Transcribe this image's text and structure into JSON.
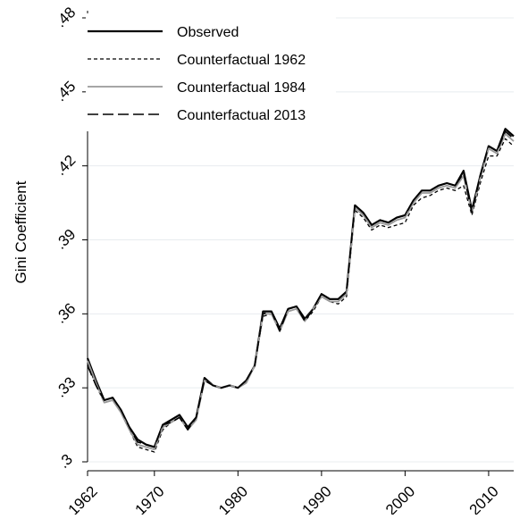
{
  "chart_data": {
    "type": "line",
    "ylabel": "Gini Coefficient",
    "xlabel": "",
    "xlim": [
      1962,
      2013
    ],
    "ylim": [
      0.3,
      0.48
    ],
    "x_ticks": [
      1962,
      1970,
      1980,
      1990,
      2000,
      2010
    ],
    "x_tick_labels": [
      "1962",
      "1970",
      "1980",
      "1990",
      "2000",
      "2010"
    ],
    "y_ticks": [
      0.3,
      0.33,
      0.36,
      0.39,
      0.42,
      0.45,
      0.48
    ],
    "y_tick_labels": [
      ".3",
      ".33",
      ".36",
      ".39",
      ".42",
      ".45",
      ".48"
    ],
    "grid": true,
    "legend_position": "top-left",
    "x": [
      1962,
      1963,
      1964,
      1965,
      1966,
      1967,
      1968,
      1969,
      1970,
      1971,
      1972,
      1973,
      1974,
      1975,
      1976,
      1977,
      1978,
      1979,
      1980,
      1981,
      1982,
      1983,
      1984,
      1985,
      1986,
      1987,
      1988,
      1989,
      1990,
      1991,
      1992,
      1993,
      1994,
      1995,
      1996,
      1997,
      1998,
      1999,
      2000,
      2001,
      2002,
      2003,
      2004,
      2005,
      2006,
      2007,
      2008,
      2009,
      2010,
      2011,
      2012,
      2013
    ],
    "series": [
      {
        "name": "Observed",
        "color": "#000000",
        "dash": "",
        "width": 2.2,
        "values": [
          0.342,
          0.333,
          0.325,
          0.326,
          0.321,
          0.314,
          0.309,
          0.307,
          0.306,
          0.315,
          0.317,
          0.319,
          0.314,
          0.318,
          0.334,
          0.331,
          0.33,
          0.331,
          0.33,
          0.333,
          0.339,
          0.361,
          0.361,
          0.354,
          0.362,
          0.363,
          0.358,
          0.362,
          0.368,
          0.366,
          0.366,
          0.369,
          0.404,
          0.401,
          0.396,
          0.398,
          0.397,
          0.399,
          0.4,
          0.406,
          0.41,
          0.41,
          0.412,
          0.413,
          0.412,
          0.418,
          0.402,
          0.416,
          0.428,
          0.426,
          0.435,
          0.432
        ]
      },
      {
        "name": "Counterfactual 1962",
        "color": "#000000",
        "dash": "4 3",
        "width": 1.3,
        "values": [
          0.34,
          0.331,
          0.324,
          0.325,
          0.32,
          0.313,
          0.306,
          0.305,
          0.304,
          0.313,
          0.316,
          0.318,
          0.313,
          0.317,
          0.333,
          0.331,
          0.33,
          0.331,
          0.33,
          0.332,
          0.339,
          0.359,
          0.36,
          0.353,
          0.361,
          0.362,
          0.357,
          0.361,
          0.367,
          0.365,
          0.364,
          0.367,
          0.402,
          0.399,
          0.394,
          0.396,
          0.395,
          0.396,
          0.397,
          0.404,
          0.407,
          0.408,
          0.41,
          0.411,
          0.41,
          0.412,
          0.4,
          0.413,
          0.424,
          0.424,
          0.431,
          0.428
        ]
      },
      {
        "name": "Counterfactual 1984",
        "color": "#999999",
        "dash": "",
        "width": 1.8,
        "values": [
          0.341,
          0.332,
          0.324,
          0.325,
          0.32,
          0.313,
          0.307,
          0.306,
          0.305,
          0.314,
          0.316,
          0.318,
          0.313,
          0.317,
          0.333,
          0.331,
          0.33,
          0.331,
          0.33,
          0.332,
          0.339,
          0.36,
          0.36,
          0.353,
          0.361,
          0.362,
          0.357,
          0.362,
          0.367,
          0.365,
          0.365,
          0.368,
          0.403,
          0.4,
          0.395,
          0.397,
          0.396,
          0.398,
          0.399,
          0.405,
          0.409,
          0.409,
          0.411,
          0.412,
          0.411,
          0.416,
          0.401,
          0.415,
          0.427,
          0.425,
          0.433,
          0.43
        ]
      },
      {
        "name": "Counterfactual 2013",
        "color": "#000000",
        "dash": "12 5",
        "width": 1.6,
        "values": [
          0.339,
          0.331,
          0.325,
          0.326,
          0.321,
          0.314,
          0.308,
          0.307,
          0.306,
          0.315,
          0.316,
          0.318,
          0.313,
          0.318,
          0.333,
          0.331,
          0.33,
          0.331,
          0.33,
          0.333,
          0.339,
          0.36,
          0.361,
          0.353,
          0.362,
          0.363,
          0.357,
          0.362,
          0.368,
          0.366,
          0.366,
          0.369,
          0.404,
          0.401,
          0.396,
          0.398,
          0.397,
          0.399,
          0.4,
          0.406,
          0.41,
          0.41,
          0.412,
          0.413,
          0.412,
          0.417,
          0.401,
          0.416,
          0.428,
          0.426,
          0.434,
          0.431
        ]
      }
    ]
  }
}
